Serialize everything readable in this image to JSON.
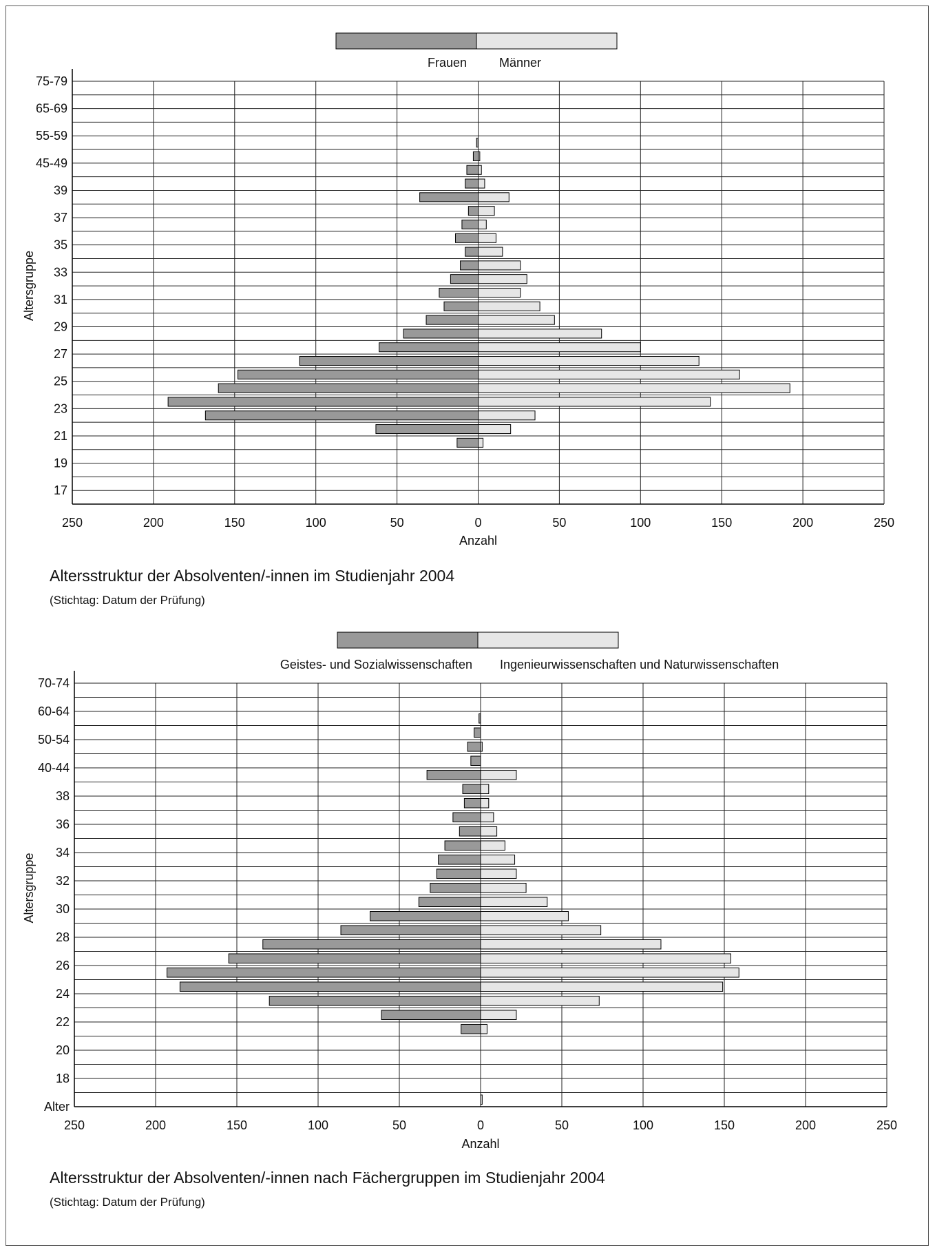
{
  "chart_data": [
    {
      "type": "bar",
      "orientation": "horizontal",
      "layout": "population-pyramid",
      "title": "Altersstruktur der Absolventen/-innen im Studienjahr 2004",
      "subtitle": "(Stichtag: Datum der Prüfung)",
      "xlabel": "Anzahl",
      "ylabel": "Altersgruppe",
      "xlim": [
        -250,
        250
      ],
      "xticks": [
        250,
        200,
        150,
        100,
        50,
        0,
        50,
        100,
        150,
        200,
        250
      ],
      "legend_position": "top",
      "grid": true,
      "y_tick_labels": [
        "75-79",
        "65-69",
        "55-59",
        "45-49",
        "39",
        "37",
        "35",
        "33",
        "31",
        "29",
        "27",
        "25",
        "23",
        "21",
        "19",
        "17"
      ],
      "series": [
        {
          "name": "Frauen",
          "color": "#999999",
          "side": "left",
          "values": [
            0,
            0,
            0,
            0,
            1,
            3,
            7,
            8,
            36,
            6,
            10,
            14,
            8,
            11,
            17,
            24,
            21,
            32,
            46,
            61,
            110,
            148,
            160,
            191,
            168,
            63,
            13,
            0,
            0,
            0,
            0
          ]
        },
        {
          "name": "Männer",
          "color": "#e6e6e6",
          "side": "right",
          "values": [
            0,
            0,
            0,
            0,
            0,
            1,
            2,
            4,
            19,
            10,
            5,
            11,
            15,
            26,
            30,
            26,
            38,
            47,
            76,
            100,
            136,
            161,
            192,
            143,
            35,
            20,
            3,
            0,
            0,
            0,
            0
          ]
        }
      ]
    },
    {
      "type": "bar",
      "orientation": "horizontal",
      "layout": "population-pyramid",
      "title": "Altersstruktur der Absolventen/-innen nach Fächergruppen im Studienjahr 2004",
      "subtitle": "(Stichtag: Datum der Prüfung)",
      "xlabel": "Anzahl",
      "ylabel": "Altersgruppe",
      "xlim": [
        -250,
        250
      ],
      "xticks": [
        250,
        200,
        150,
        100,
        50,
        0,
        50,
        100,
        150,
        200,
        250
      ],
      "legend_position": "top",
      "grid": true,
      "y_tick_labels": [
        "70-74",
        "60-64",
        "50-54",
        "40-44",
        "38",
        "36",
        "34",
        "32",
        "30",
        "28",
        "26",
        "24",
        "22",
        "20",
        "18",
        "Alter"
      ],
      "series": [
        {
          "name": "Geistes- und Sozialwissenschaften",
          "color": "#999999",
          "side": "left",
          "values": [
            0,
            0,
            1,
            4,
            8,
            6,
            33,
            11,
            10,
            17,
            13,
            22,
            26,
            27,
            31,
            38,
            68,
            86,
            134,
            155,
            193,
            185,
            130,
            61,
            12,
            0,
            0,
            0,
            0,
            0
          ]
        },
        {
          "name": "Ingenieurwissenschaften und Naturwissenschaften",
          "color": "#e6e6e6",
          "side": "right",
          "values": [
            0,
            0,
            0,
            0,
            1,
            0,
            22,
            5,
            5,
            8,
            10,
            15,
            21,
            22,
            28,
            41,
            54,
            74,
            111,
            154,
            159,
            149,
            73,
            22,
            4,
            0,
            0,
            0,
            0,
            1
          ]
        }
      ]
    }
  ]
}
